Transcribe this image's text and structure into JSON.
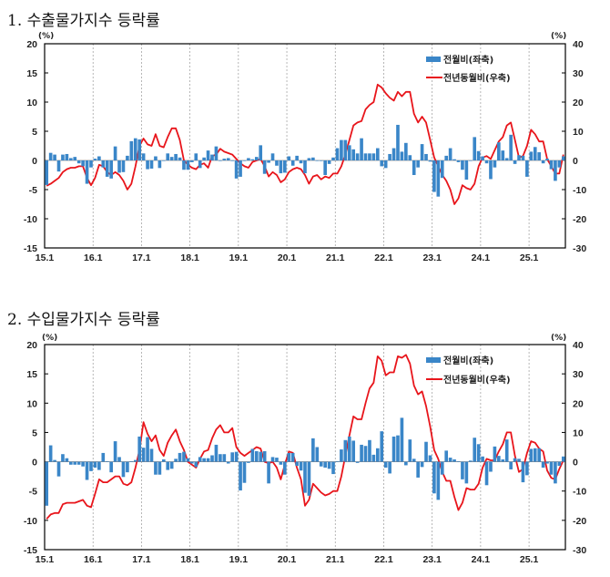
{
  "colors": {
    "bar": "#3a86c8",
    "line": "#e8151b",
    "grid": "#999999"
  },
  "chart_data": [
    {
      "type": "bar+line",
      "title": "1. 수출물가지수 등락률",
      "left_unit": "(%)",
      "right_unit": "(%)",
      "left_ylim": [
        -15,
        20
      ],
      "left_ticks": [
        -15,
        -10,
        -5,
        0,
        5,
        10,
        15,
        20
      ],
      "right_ylim": [
        -30,
        40
      ],
      "right_ticks": [
        -30,
        -20,
        -10,
        0,
        10,
        20,
        30,
        40
      ],
      "x_start": "15.1",
      "x_tick_labels": [
        "15.1",
        "16.1",
        "17.1",
        "18.1",
        "19.1",
        "20.1",
        "21.1",
        "22.1",
        "23.1",
        "24.1",
        "25.1"
      ],
      "legend_placement": "top-right",
      "series": [
        {
          "name": "전월비(좌축)",
          "type": "bar",
          "axis": "left",
          "values": [
            -4.2,
            1.3,
            1.0,
            -1.9,
            1.0,
            1.1,
            0.4,
            0.6,
            -0.5,
            -1.0,
            -4.0,
            -1.2,
            0.3,
            0.7,
            -1.2,
            -2.8,
            -3.1,
            2.4,
            -2.1,
            -2.0,
            0.8,
            3.3,
            3.8,
            3.6,
            1.2,
            -1.5,
            -1.4,
            0.7,
            -1.3,
            0.0,
            1.2,
            0.6,
            1.1,
            0.5,
            -1.6,
            -1.6,
            -0.3,
            1.2,
            -1.3,
            0.5,
            1.7,
            1.0,
            2.4,
            -0.1,
            0.3,
            0.4,
            -0.1,
            -3.1,
            -2.8,
            -0.1,
            0.4,
            0.2,
            0.6,
            2.6,
            -2.3,
            -0.4,
            1.2,
            -0.9,
            -2.2,
            -2.1,
            0.7,
            -0.9,
            0.8,
            -0.5,
            -2.2,
            0.4,
            0.5,
            0.0,
            -0.1,
            -2.5,
            -0.6,
            0.5,
            2.1,
            3.5,
            3.5,
            2.6,
            1.9,
            1.2,
            3.8,
            1.2,
            1.2,
            1.2,
            2.1,
            -1.0,
            -1.3,
            1.1,
            2.1,
            6.1,
            1.5,
            3.0,
            0.9,
            -2.5,
            -1.2,
            2.8,
            1.1,
            -0.2,
            -5.4,
            -6.2,
            -3.0,
            0.8,
            2.1,
            0.2,
            -0.3,
            -1.6,
            -3.3,
            0.0,
            4.0,
            1.6,
            0.7,
            -0.5,
            -3.2,
            -1.2,
            3.1,
            1.7,
            0.4,
            4.4,
            -0.6,
            0.9,
            0.8,
            -2.8,
            1.5,
            2.3,
            1.4,
            -0.5,
            0.3,
            -1.5,
            -3.5,
            -1.2,
            0.7
          ]
        },
        {
          "name": "전년동월비(우축)",
          "type": "line",
          "axis": "right",
          "values": [
            -8.7,
            -8,
            -7,
            -6,
            -4,
            -3,
            -2.5,
            -2.5,
            -2,
            -2,
            -6,
            -8.5,
            -6,
            -1.5,
            -2,
            -4,
            -5,
            -4,
            -5,
            -7,
            -10,
            -8,
            -2,
            5,
            7.5,
            5.5,
            5,
            9,
            5,
            4.5,
            8,
            11,
            11,
            7,
            0,
            -1.5,
            -2.5,
            -3,
            -1.5,
            -1,
            -2.5,
            1.5,
            2,
            4,
            3,
            2.5,
            2,
            0.5,
            -1,
            -2,
            -2.5,
            -0.5,
            0,
            0.5,
            -2,
            -5.5,
            -4,
            -5,
            -7.5,
            -6.5,
            -4,
            -3,
            -2.5,
            -3,
            -5,
            -8,
            -5.5,
            -5,
            -6.5,
            -5.5,
            -6,
            -4.5,
            -4.5,
            -2,
            2,
            7,
            12,
            13,
            13.5,
            17.5,
            19,
            20,
            26,
            25,
            23,
            21.5,
            20.5,
            23.5,
            22,
            23.5,
            23.5,
            16,
            13,
            15,
            13,
            7,
            1,
            -2,
            -5,
            -7,
            -10,
            -15,
            -13,
            -8.5,
            -9.5,
            -10,
            -8,
            -2,
            1,
            1.5,
            0.5,
            3.5,
            6.5,
            8,
            12,
            13,
            7,
            1,
            1.5,
            5,
            10.5,
            9,
            6.5,
            6.5,
            0.5,
            -2,
            -4.5,
            -4.5,
            2
          ]
        }
      ]
    },
    {
      "type": "bar+line",
      "title": "2. 수입물가지수 등락률",
      "left_unit": "(%)",
      "right_unit": "(%)",
      "left_ylim": [
        -15,
        20
      ],
      "left_ticks": [
        -15,
        -10,
        -5,
        0,
        5,
        10,
        15,
        20
      ],
      "right_ylim": [
        -30,
        40
      ],
      "right_ticks": [
        -30,
        -20,
        -10,
        0,
        10,
        20,
        30,
        40
      ],
      "x_start": "15.1",
      "x_tick_labels": [
        "15.1",
        "16.1",
        "17.1",
        "18.1",
        "19.1",
        "20.1",
        "21.1",
        "22.1",
        "23.1",
        "24.1",
        "25.1"
      ],
      "legend_placement": "top-right",
      "series": [
        {
          "name": "전월비(좌축)",
          "type": "bar",
          "axis": "left",
          "values": [
            -7.5,
            2.8,
            0.3,
            -2.5,
            1.3,
            0.6,
            -0.5,
            -0.5,
            -0.5,
            -0.8,
            -3.1,
            -1.6,
            -1.0,
            -1.4,
            1.5,
            0.1,
            -1.8,
            3.5,
            0.8,
            -2.6,
            -1.8,
            0.1,
            0.3,
            4.3,
            2.4,
            4.2,
            2.2,
            -2.2,
            -2.2,
            0.4,
            -1.4,
            -1.2,
            0.5,
            1.5,
            1.7,
            0.6,
            -0.3,
            -0.9,
            0.8,
            0.6,
            0.6,
            1.1,
            2.9,
            1.3,
            1.3,
            -0.3,
            1.6,
            1.7,
            -4.9,
            -3.6,
            -0.2,
            2.2,
            1.8,
            1.7,
            1.8,
            -3.7,
            0.8,
            0.7,
            -0.5,
            -2.2,
            1.5,
            1.5,
            -0.7,
            -1.5,
            -5.3,
            -5.8,
            4.0,
            2.5,
            -0.8,
            -1.0,
            -1.2,
            -2.1,
            0.1,
            2.1,
            3.7,
            4.3,
            3.6,
            -0.2,
            2.9,
            2.7,
            3.7,
            1.2,
            2.3,
            5.2,
            -1.0,
            -2.0,
            4.3,
            4.5,
            7.5,
            -0.6,
            3.8,
            0.5,
            -2.7,
            -0.9,
            3.4,
            1.1,
            -5.4,
            -6.5,
            -2.2,
            1.9,
            0.7,
            0.4,
            0.1,
            -3.0,
            -3.7,
            0.2,
            4.1,
            3.0,
            0.9,
            -4.0,
            -1.7,
            2.6,
            1.0,
            0.4,
            3.8,
            -1.3,
            0.6,
            0.5,
            -3.5,
            -2.3,
            2.2,
            2.3,
            2.3,
            -1.0,
            -0.3,
            -2.2,
            -3.7,
            -0.7,
            0.9
          ]
        },
        {
          "name": "전년동월비(우축)",
          "type": "line",
          "axis": "right",
          "values": [
            -19.5,
            -18,
            -17.5,
            -17.5,
            -14.5,
            -14,
            -14,
            -14,
            -13.5,
            -13,
            -15,
            -15.5,
            -11,
            -6,
            -7,
            -7,
            -6,
            -5,
            -5,
            -7.5,
            -8,
            -7,
            -2,
            4,
            13.5,
            9.5,
            7,
            9,
            4,
            2,
            6.5,
            9,
            11,
            7,
            4,
            0,
            -1,
            -2,
            1,
            3.5,
            4,
            8,
            11,
            12.5,
            10,
            10,
            11.5,
            5,
            3,
            2,
            3,
            4,
            5,
            4.5,
            0,
            -0.5,
            0,
            -2,
            -6,
            -1,
            3.5,
            3,
            -2,
            -6,
            -15,
            -13,
            -7.5,
            -9,
            -10.5,
            -11.5,
            -11,
            -10,
            -10,
            -5,
            2,
            9,
            15.5,
            14.5,
            14.5,
            20,
            25,
            27,
            36,
            34.5,
            29.5,
            30.5,
            30.5,
            36,
            35.5,
            36.5,
            33.5,
            26,
            23,
            24,
            19,
            12,
            4,
            1,
            -3.5,
            -6.5,
            -6.5,
            -12,
            -16.5,
            -14,
            -9,
            -9.5,
            -9.5,
            -7.5,
            -2,
            1,
            0.5,
            0.5,
            3.5,
            6,
            10,
            10,
            2,
            -3.5,
            -2.5,
            3,
            7,
            6.5,
            4.5,
            3.5,
            -3,
            -5.5,
            -6,
            -2.5,
            0.5
          ]
        }
      ]
    }
  ]
}
